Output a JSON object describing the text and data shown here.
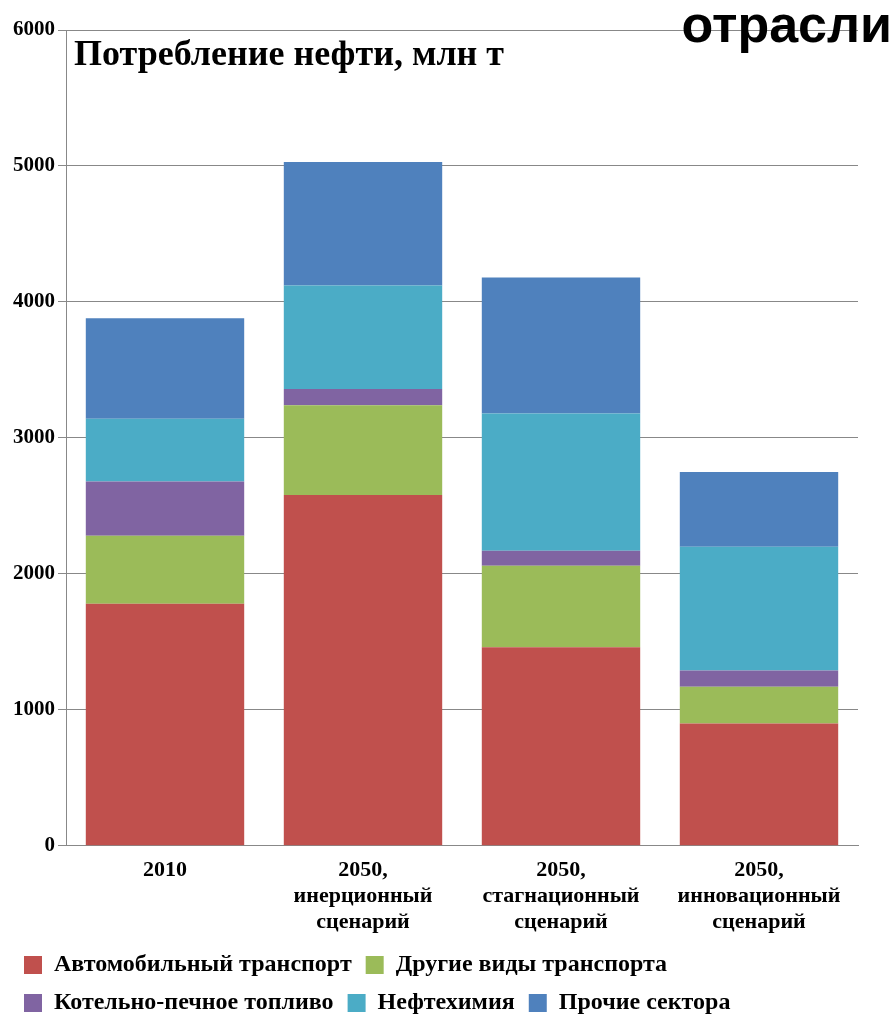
{
  "chart_data": {
    "type": "bar",
    "title": "Потребление нефти, млн т",
    "stacked": true,
    "categories": [
      "2010",
      "2050, инерционный сценарий",
      "2050, стагнационный сценарий",
      "2050, инновационный сценарий"
    ],
    "series": [
      {
        "name": "Автомобильный транспорт",
        "color": "#c0504d",
        "values": [
          1780,
          2580,
          1460,
          900
        ]
      },
      {
        "name": "Другие виды транспорта",
        "color": "#9bbb59",
        "values": [
          500,
          660,
          600,
          270
        ]
      },
      {
        "name": "Котельно-печное топливо",
        "color": "#8064a2",
        "values": [
          400,
          120,
          110,
          120
        ]
      },
      {
        "name": "Нефтехимия",
        "color": "#4bacc6",
        "values": [
          460,
          760,
          1010,
          910
        ]
      },
      {
        "name": "Прочие сектора",
        "color": "#4f81bd",
        "values": [
          740,
          910,
          1000,
          550
        ]
      }
    ],
    "ylim": [
      0,
      6000
    ],
    "yticks": [
      0,
      1000,
      2000,
      3000,
      4000,
      5000,
      6000
    ],
    "grid": "y",
    "legend": "bottom",
    "annotations": [
      "отрасли"
    ]
  }
}
